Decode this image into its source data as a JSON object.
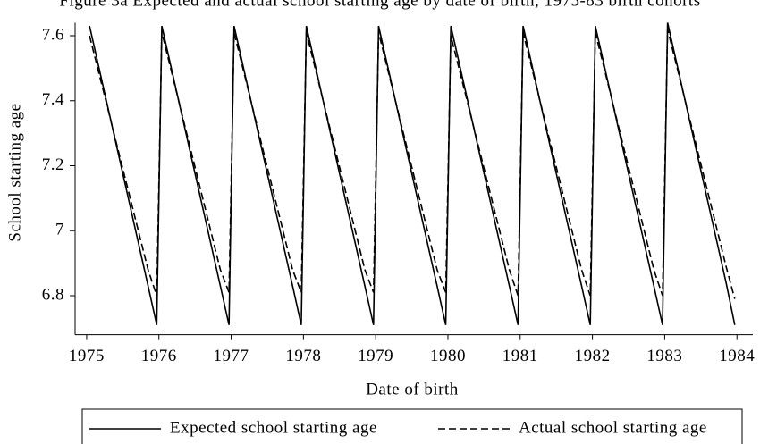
{
  "chart_data": {
    "type": "line",
    "title": "Figure 3a Expected and actual school starting age by date of birth, 1975-83 birth cohorts",
    "xlabel": "Date of birth",
    "ylabel": "School starting age",
    "x": [
      1975.04,
      1975.85,
      1975.97,
      1976.04,
      1976.85,
      1976.97,
      1977.04,
      1977.85,
      1977.97,
      1978.04,
      1978.85,
      1978.97,
      1979.04,
      1979.85,
      1979.97,
      1980.04,
      1980.85,
      1980.97,
      1981.04,
      1981.85,
      1981.97,
      1982.04,
      1982.85,
      1982.97,
      1983.04,
      1983.85,
      1983.97
    ],
    "series": [
      {
        "name": "Expected school starting age",
        "color": "#000000",
        "style": "solid",
        "values": [
          7.63,
          6.83,
          6.71,
          7.63,
          6.83,
          6.71,
          7.63,
          6.83,
          6.71,
          7.63,
          6.83,
          6.71,
          7.63,
          6.83,
          6.71,
          7.63,
          6.83,
          6.71,
          7.63,
          6.83,
          6.71,
          7.63,
          6.83,
          6.71,
          7.64,
          6.84,
          6.71
        ]
      },
      {
        "name": "Actual school starting age",
        "color": "#000000",
        "style": "dashed",
        "values": [
          7.6,
          6.88,
          6.8,
          7.61,
          6.88,
          6.81,
          7.61,
          6.88,
          6.81,
          7.61,
          6.88,
          6.81,
          7.61,
          6.88,
          6.81,
          7.6,
          6.88,
          6.8,
          7.61,
          6.88,
          6.8,
          7.61,
          6.88,
          6.8,
          7.62,
          6.89,
          6.79
        ]
      }
    ],
    "xlim": [
      1974.84,
      1984.22
    ],
    "xticks": [
      1975,
      1976,
      1977,
      1978,
      1979,
      1980,
      1981,
      1982,
      1983,
      1984
    ],
    "ylim": [
      6.68,
      7.64
    ],
    "yticks": [
      6.8,
      7,
      7.2,
      7.4,
      7.6
    ],
    "grid": false,
    "legend": "bottom"
  }
}
